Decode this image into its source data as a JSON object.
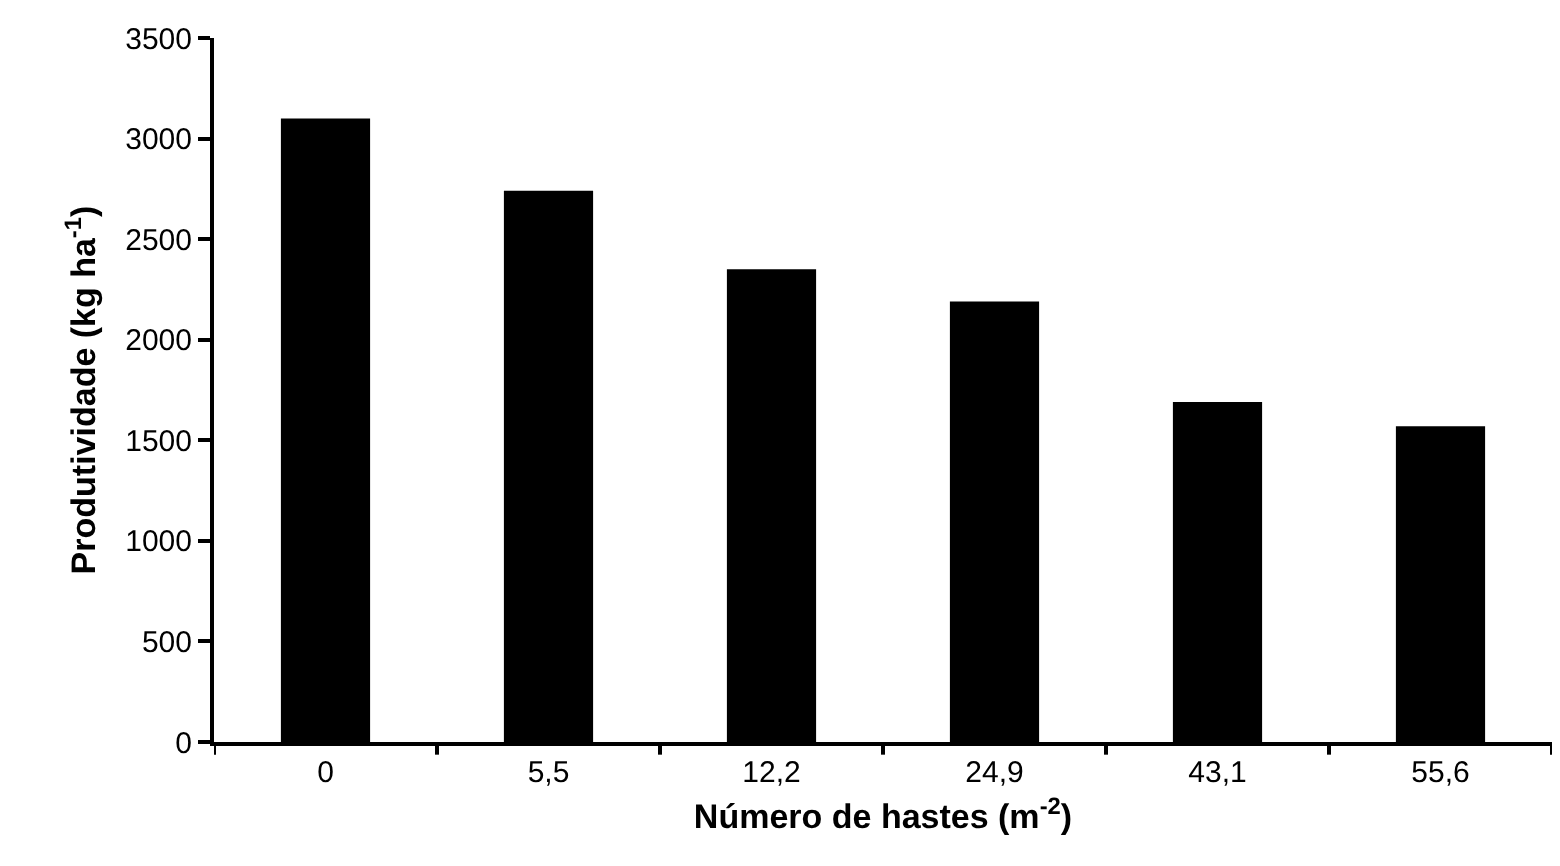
{
  "chart_data": {
    "type": "bar",
    "xlabel": "Número de hastes (m$^{-2}$)",
    "ylabel": "Produtividade (kg ha$^{-1}$)",
    "categories": [
      "0",
      "5,5",
      "12,2",
      "24,9",
      "43,1",
      "55,6"
    ],
    "values": [
      3100,
      2740,
      2350,
      2190,
      1690,
      1570
    ],
    "color": "#000000",
    "ylim": [
      0,
      3500
    ],
    "yticks": [
      0,
      500,
      1000,
      1500,
      2000,
      2500,
      3000,
      3500
    ]
  }
}
